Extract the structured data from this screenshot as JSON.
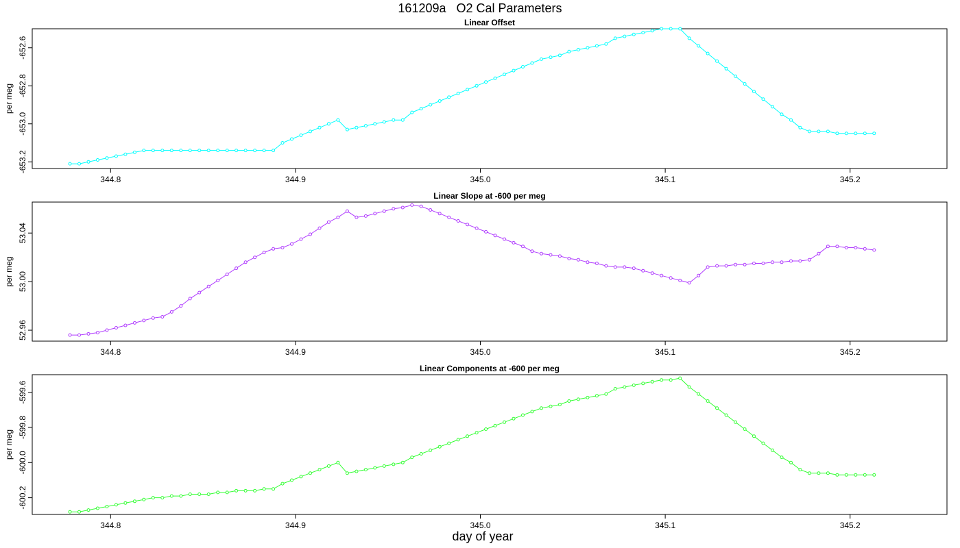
{
  "page_title": "161209a   O2 Cal Parameters",
  "x_axis_label": "day of year",
  "chart_data": [
    {
      "type": "line",
      "title": "Linear Offset",
      "ylabel": "per meg",
      "color": "#00FFFF",
      "xlim": [
        344.7576,
        345.2524
      ],
      "ylim": [
        -653.235,
        -652.5
      ],
      "x_ticks": [
        344.8,
        344.9,
        345.0,
        345.1,
        345.2
      ],
      "x_tick_labels": [
        "344.8",
        "344.9",
        "345.0",
        "345.1",
        "345.2"
      ],
      "y_ticks": [
        -653.2,
        -653.0,
        -652.8,
        -652.6
      ],
      "y_tick_labels": [
        "-653.2",
        "-653.0",
        "-652.8",
        "-652.6"
      ],
      "series": [
        {
          "name": "Linear Offset",
          "x": [
            344.778,
            344.783,
            344.788,
            344.793,
            344.798,
            344.803,
            344.808,
            344.813,
            344.818,
            344.823,
            344.828,
            344.833,
            344.838,
            344.843,
            344.848,
            344.853,
            344.858,
            344.863,
            344.868,
            344.873,
            344.878,
            344.883,
            344.888,
            344.893,
            344.898,
            344.903,
            344.908,
            344.913,
            344.918,
            344.923,
            344.928,
            344.933,
            344.938,
            344.943,
            344.948,
            344.953,
            344.958,
            344.963,
            344.968,
            344.973,
            344.978,
            344.983,
            344.988,
            344.993,
            344.998,
            345.003,
            345.008,
            345.013,
            345.018,
            345.023,
            345.028,
            345.033,
            345.038,
            345.043,
            345.048,
            345.053,
            345.058,
            345.063,
            345.068,
            345.073,
            345.078,
            345.083,
            345.088,
            345.093,
            345.098,
            345.103,
            345.108,
            345.113,
            345.118,
            345.123,
            345.128,
            345.133,
            345.138,
            345.143,
            345.148,
            345.153,
            345.158,
            345.163,
            345.168,
            345.173,
            345.178,
            345.183,
            345.188,
            345.193,
            345.198,
            345.203,
            345.208,
            345.213
          ],
          "y": [
            -653.21,
            -653.21,
            -653.2,
            -653.19,
            -653.18,
            -653.17,
            -653.16,
            -653.15,
            -653.14,
            -653.14,
            -653.14,
            -653.14,
            -653.14,
            -653.14,
            -653.14,
            -653.14,
            -653.14,
            -653.14,
            -653.14,
            -653.14,
            -653.14,
            -653.14,
            -653.14,
            -653.1,
            -653.08,
            -653.06,
            -653.04,
            -653.02,
            -653.0,
            -652.98,
            -653.03,
            -653.02,
            -653.01,
            -653.0,
            -652.99,
            -652.98,
            -652.98,
            -652.94,
            -652.92,
            -652.9,
            -652.88,
            -652.86,
            -652.84,
            -652.82,
            -652.8,
            -652.78,
            -652.76,
            -652.74,
            -652.72,
            -652.7,
            -652.68,
            -652.66,
            -652.65,
            -652.64,
            -652.62,
            -652.61,
            -652.6,
            -652.59,
            -652.58,
            -652.55,
            -652.54,
            -652.53,
            -652.52,
            -652.51,
            -652.5,
            -652.5,
            -652.5,
            -652.55,
            -652.59,
            -652.63,
            -652.67,
            -652.71,
            -652.75,
            -652.79,
            -652.83,
            -652.87,
            -652.91,
            -652.95,
            -652.98,
            -653.02,
            -653.04,
            -653.04,
            -653.04,
            -653.05,
            -653.05,
            -653.05,
            -653.05,
            -653.05
          ]
        }
      ]
    },
    {
      "type": "line",
      "title": "Linear Slope at -600 per meg",
      "ylabel": "per meg",
      "color": "#B03CFF",
      "xlim": [
        344.7576,
        345.2524
      ],
      "ylim": [
        52.951,
        53.0655
      ],
      "x_ticks": [
        344.8,
        344.9,
        345.0,
        345.1,
        345.2
      ],
      "x_tick_labels": [
        "344.8",
        "344.9",
        "345.0",
        "345.1",
        "345.2"
      ],
      "y_ticks": [
        52.96,
        53.0,
        53.04
      ],
      "y_tick_labels": [
        "52.96",
        "53.00",
        "53.04"
      ],
      "series": [
        {
          "name": "Linear Slope",
          "x": [
            344.778,
            344.783,
            344.788,
            344.793,
            344.798,
            344.803,
            344.808,
            344.813,
            344.818,
            344.823,
            344.828,
            344.833,
            344.838,
            344.843,
            344.848,
            344.853,
            344.858,
            344.863,
            344.868,
            344.873,
            344.878,
            344.883,
            344.888,
            344.893,
            344.898,
            344.903,
            344.908,
            344.913,
            344.918,
            344.923,
            344.928,
            344.933,
            344.938,
            344.943,
            344.948,
            344.953,
            344.958,
            344.963,
            344.968,
            344.973,
            344.978,
            344.983,
            344.988,
            344.993,
            344.998,
            345.003,
            345.008,
            345.013,
            345.018,
            345.023,
            345.028,
            345.033,
            345.038,
            345.043,
            345.048,
            345.053,
            345.058,
            345.063,
            345.068,
            345.073,
            345.078,
            345.083,
            345.088,
            345.093,
            345.098,
            345.103,
            345.108,
            345.113,
            345.118,
            345.123,
            345.128,
            345.133,
            345.138,
            345.143,
            345.148,
            345.153,
            345.158,
            345.163,
            345.168,
            345.173,
            345.178,
            345.183,
            345.188,
            345.193,
            345.198,
            345.203,
            345.208,
            345.213
          ],
          "y": [
            52.956,
            52.956,
            52.957,
            52.958,
            52.96,
            52.962,
            52.964,
            52.966,
            52.968,
            52.97,
            52.971,
            52.975,
            52.98,
            52.986,
            52.991,
            52.996,
            53.001,
            53.006,
            53.011,
            53.016,
            53.02,
            53.024,
            53.027,
            53.028,
            53.031,
            53.035,
            53.039,
            53.044,
            53.049,
            53.053,
            53.058,
            53.053,
            53.054,
            53.056,
            53.058,
            53.06,
            53.061,
            53.063,
            53.062,
            53.059,
            53.056,
            53.053,
            53.05,
            53.047,
            53.044,
            53.041,
            53.038,
            53.035,
            53.032,
            53.029,
            53.025,
            53.023,
            53.022,
            53.021,
            53.019,
            53.018,
            53.016,
            53.015,
            53.013,
            53.012,
            53.012,
            53.011,
            53.009,
            53.007,
            53.005,
            53.003,
            53.001,
            52.999,
            53.005,
            53.012,
            53.013,
            53.013,
            53.014,
            53.014,
            53.015,
            53.015,
            53.016,
            53.016,
            53.017,
            53.017,
            53.018,
            53.023,
            53.029,
            53.029,
            53.028,
            53.028,
            53.027,
            53.026
          ]
        }
      ]
    },
    {
      "type": "line",
      "title": "Linear Components at -600 per meg",
      "ylabel": "per meg",
      "color": "#33FF33",
      "xlim": [
        344.7576,
        345.2524
      ],
      "ylim": [
        -600.295,
        -599.5
      ],
      "x_ticks": [
        344.8,
        344.9,
        345.0,
        345.1,
        345.2
      ],
      "x_tick_labels": [
        "344.8",
        "344.9",
        "345.0",
        "345.1",
        "345.2"
      ],
      "y_ticks": [
        -600.2,
        -600.0,
        -599.8,
        -599.6
      ],
      "y_tick_labels": [
        "-600.2",
        "-600.0",
        "-599.8",
        "-599.6"
      ],
      "series": [
        {
          "name": "Linear Components",
          "x": [
            344.778,
            344.783,
            344.788,
            344.793,
            344.798,
            344.803,
            344.808,
            344.813,
            344.818,
            344.823,
            344.828,
            344.833,
            344.838,
            344.843,
            344.848,
            344.853,
            344.858,
            344.863,
            344.868,
            344.873,
            344.878,
            344.883,
            344.888,
            344.893,
            344.898,
            344.903,
            344.908,
            344.913,
            344.918,
            344.923,
            344.928,
            344.933,
            344.938,
            344.943,
            344.948,
            344.953,
            344.958,
            344.963,
            344.968,
            344.973,
            344.978,
            344.983,
            344.988,
            344.993,
            344.998,
            345.003,
            345.008,
            345.013,
            345.018,
            345.023,
            345.028,
            345.033,
            345.038,
            345.043,
            345.048,
            345.053,
            345.058,
            345.063,
            345.068,
            345.073,
            345.078,
            345.083,
            345.088,
            345.093,
            345.098,
            345.103,
            345.108,
            345.113,
            345.118,
            345.123,
            345.128,
            345.133,
            345.138,
            345.143,
            345.148,
            345.153,
            345.158,
            345.163,
            345.168,
            345.173,
            345.178,
            345.183,
            345.188,
            345.193,
            345.198,
            345.203,
            345.208,
            345.213
          ],
          "y": [
            -600.28,
            -600.28,
            -600.27,
            -600.26,
            -600.25,
            -600.24,
            -600.23,
            -600.22,
            -600.21,
            -600.2,
            -600.2,
            -600.19,
            -600.19,
            -600.18,
            -600.18,
            -600.18,
            -600.17,
            -600.17,
            -600.16,
            -600.16,
            -600.16,
            -600.15,
            -600.15,
            -600.12,
            -600.1,
            -600.08,
            -600.06,
            -600.04,
            -600.02,
            -600.0,
            -600.06,
            -600.05,
            -600.04,
            -600.03,
            -600.02,
            -600.01,
            -600.0,
            -599.97,
            -599.95,
            -599.93,
            -599.91,
            -599.89,
            -599.87,
            -599.85,
            -599.83,
            -599.81,
            -599.79,
            -599.77,
            -599.75,
            -599.73,
            -599.71,
            -599.69,
            -599.68,
            -599.67,
            -599.65,
            -599.64,
            -599.63,
            -599.62,
            -599.61,
            -599.58,
            -599.57,
            -599.56,
            -599.55,
            -599.54,
            -599.53,
            -599.53,
            -599.52,
            -599.57,
            -599.61,
            -599.65,
            -599.69,
            -599.73,
            -599.77,
            -599.81,
            -599.85,
            -599.89,
            -599.93,
            -599.97,
            -600.0,
            -600.04,
            -600.06,
            -600.06,
            -600.06,
            -600.07,
            -600.07,
            -600.07,
            -600.07,
            -600.07
          ]
        }
      ]
    }
  ]
}
